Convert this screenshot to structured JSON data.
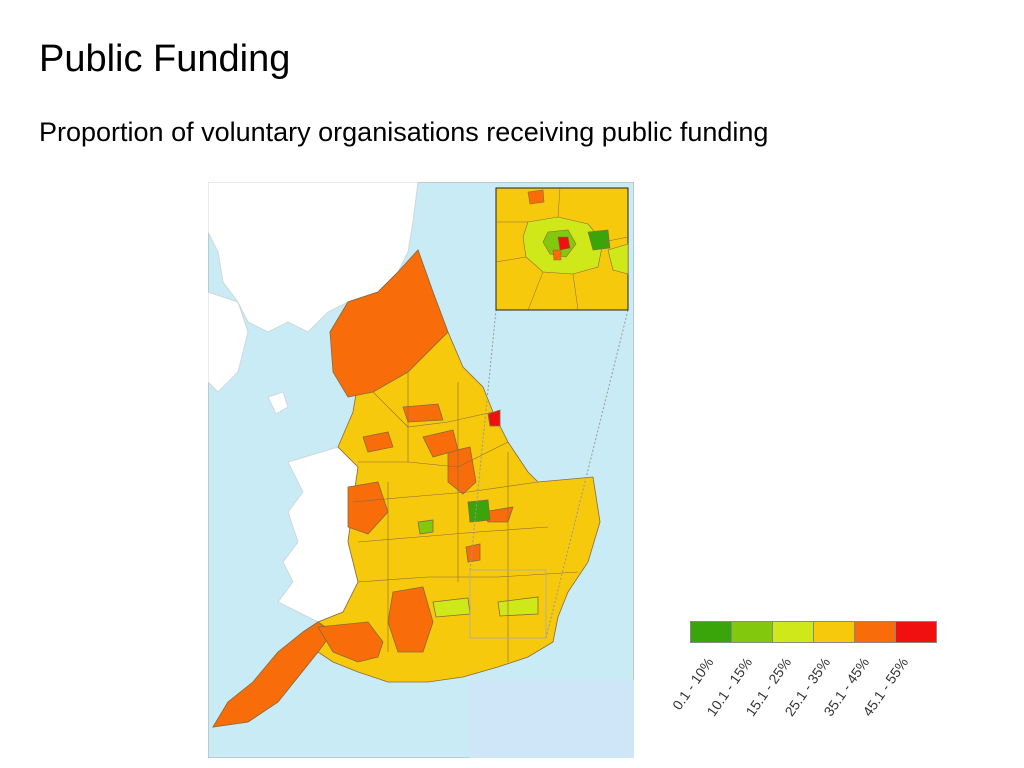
{
  "title": "Public Funding",
  "subtitle": "Proportion of voluntary organisations receiving public funding",
  "legend": {
    "items": [
      {
        "label": "0.1 - 10%",
        "color": "#3aa50a"
      },
      {
        "label": "10.1 - 15%",
        "color": "#82c80c"
      },
      {
        "label": "15.1 - 25%",
        "color": "#cfe81a"
      },
      {
        "label": "25.1 - 35%",
        "color": "#f6c90c"
      },
      {
        "label": "35.1 - 45%",
        "color": "#f96c0a"
      },
      {
        "label": "45.1 - 55%",
        "color": "#f01010"
      }
    ]
  },
  "map": {
    "sea_color": "#c8ebf5",
    "land_other_color": "#ffffff",
    "border_color": "#8a6a3a",
    "inset_region": "London"
  }
}
